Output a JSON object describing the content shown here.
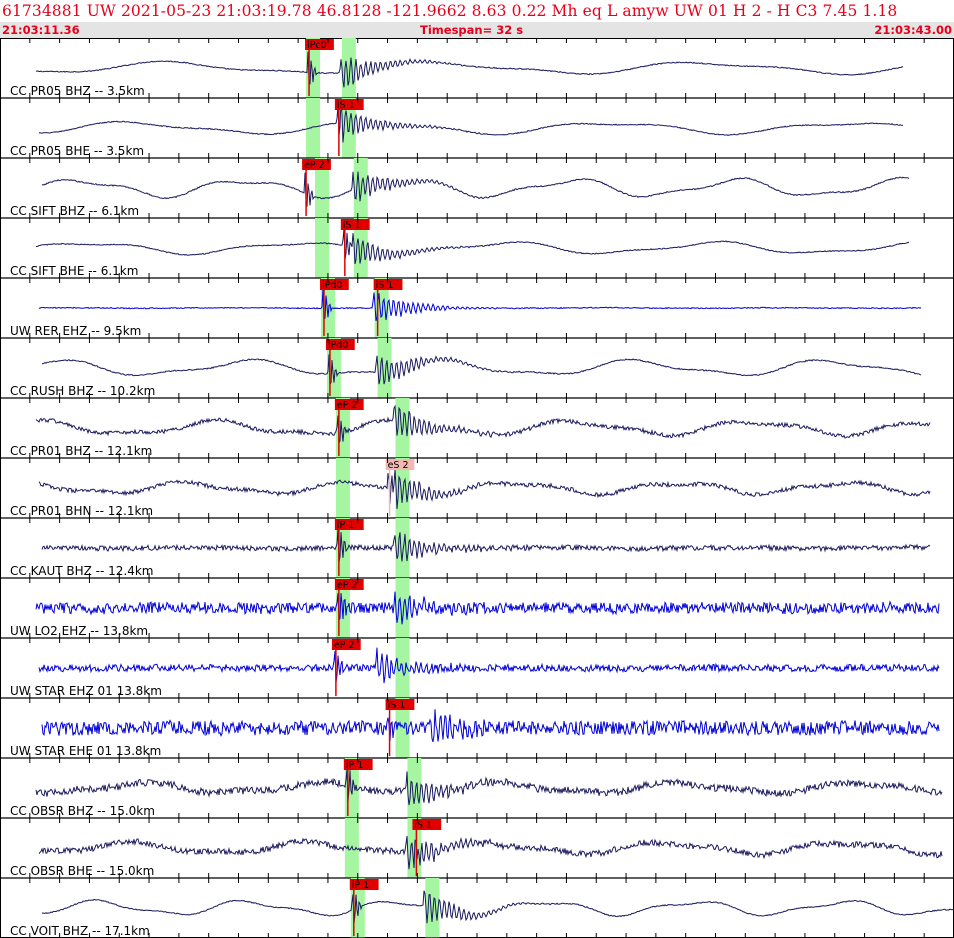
{
  "header": {
    "title": "61734881 UW 2021-05-23 21:03:19.78   46.8128 -121.9662   8.63  0.22 Mh  eq  L amyw     UW 01  H   2  -  H C3    7.45  1.18",
    "start_time": "21:03:11.36",
    "timespan": "Timespan=  32 s",
    "end_time": "21:03:43.00"
  },
  "colors": {
    "title_red": "#e8001a",
    "trace_navy": "#1a1a5e",
    "trace_blue": "#0000d8",
    "window_green": "#a6f5a0",
    "pick_red": "#e00000",
    "pick_selected": "#f4b8b4",
    "time_bar_bg": "#e4e4e4"
  },
  "chart_data": {
    "type": "seismogram",
    "x_range_s": [
      0,
      32
    ],
    "tick_interval_s": 1,
    "traces": [
      {
        "label": "CC PR05 BHZ -- 3.5km",
        "color": "navy",
        "amp": 0.17,
        "noise": 0.05,
        "low_amp": 0.5,
        "low_period": 9,
        "end_s": 30.3,
        "picks": [
          {
            "text": "iPc0",
            "t": 10.3,
            "selected": false
          }
        ],
        "windows": [
          {
            "t": 10.3
          },
          {
            "t": 11.5
          }
        ]
      },
      {
        "label": "CC PR05 BHE -- 3.5km",
        "color": "navy",
        "amp": 0.17,
        "noise": 0.05,
        "low_amp": 0.5,
        "low_period": 8,
        "end_s": 30.3,
        "picks": [
          {
            "text": "iS 1",
            "t": 11.3,
            "selected": false
          }
        ],
        "windows": [
          {
            "t": 10.3
          },
          {
            "t": 11.5
          }
        ]
      },
      {
        "label": "CC SIFT BHZ -- 6.1km",
        "color": "navy",
        "amp": 0.17,
        "noise": 0.06,
        "low_amp": 0.75,
        "low_period": 5.5,
        "end_s": 30.5,
        "picks": [
          {
            "text": "eP 2",
            "t": 10.2,
            "selected": false
          }
        ],
        "windows": [
          {
            "t": 10.6
          },
          {
            "t": 11.9
          }
        ]
      },
      {
        "label": "CC SIFT BHE -- 6.1km",
        "color": "navy",
        "amp": 0.17,
        "noise": 0.05,
        "low_amp": 0.5,
        "low_period": 7,
        "end_s": 30.5,
        "picks": [
          {
            "text": "iS 1",
            "t": 11.5,
            "selected": false
          }
        ],
        "windows": [
          {
            "t": 10.6
          },
          {
            "t": 11.9
          }
        ]
      },
      {
        "label": "UW RER EHZ -- 9.5km",
        "color": "blue",
        "amp": 0.17,
        "noise": 0.05,
        "low_amp": 0.02,
        "low_period": 6,
        "end_s": 30.9,
        "picks": [
          {
            "text": "iPd0",
            "t": 10.8,
            "selected": false
          },
          {
            "text": "iS 1",
            "t": 12.6,
            "selected": false
          }
        ],
        "windows": [
          {
            "t": 10.8
          },
          {
            "t": 12.6
          }
        ]
      },
      {
        "label": "CC RUSH BHZ -- 10.2km",
        "color": "navy",
        "amp": 0.17,
        "noise": 0.06,
        "low_amp": 0.65,
        "low_period": 6.5,
        "end_s": 30.9,
        "picks": [
          {
            "text": "iPd0",
            "t": 11.0,
            "selected": false
          }
        ],
        "windows": [
          {
            "t": 11.0
          },
          {
            "t": 12.7
          }
        ]
      },
      {
        "label": "CC PR01 BHZ -- 12.1km",
        "color": "navy",
        "amp": 0.17,
        "noise": 0.2,
        "low_amp": 0.6,
        "low_period": 6,
        "end_s": 31.2,
        "picks": [
          {
            "text": "eP 2",
            "t": 11.3,
            "selected": false
          }
        ],
        "windows": [
          {
            "t": 11.3
          },
          {
            "t": 13.3
          }
        ]
      },
      {
        "label": "CC PR01 BHN -- 12.1km",
        "color": "navy",
        "amp": 0.17,
        "noise": 0.2,
        "low_amp": 0.5,
        "low_period": 5.5,
        "end_s": 31.2,
        "picks": [
          {
            "text": "eS 2",
            "t": 13.0,
            "selected": true
          }
        ],
        "windows": [
          {
            "t": 11.3
          },
          {
            "t": 13.3
          }
        ]
      },
      {
        "label": "CC KAUT BHZ -- 12.4km",
        "color": "navy",
        "amp": 0.17,
        "noise": 0.25,
        "low_amp": 0.05,
        "low_period": 6,
        "end_s": 31.2,
        "picks": [
          {
            "text": "iP 1",
            "t": 11.3,
            "selected": false
          }
        ],
        "windows": [
          {
            "t": 11.3
          },
          {
            "t": 13.3
          }
        ]
      },
      {
        "label": "UW LO2 EHZ -- 13.8km",
        "color": "blue",
        "amp": 0.17,
        "noise": 0.55,
        "low_amp": 0.05,
        "low_period": 6,
        "end_s": 31.5,
        "picks": [
          {
            "text": "eP 2",
            "t": 11.3,
            "selected": false
          }
        ],
        "windows": [
          {
            "t": 11.3
          },
          {
            "t": 13.3
          }
        ]
      },
      {
        "label": "UW STAR EHZ 01 13.8km",
        "color": "blue",
        "amp": 0.17,
        "noise": 0.35,
        "low_amp": 0.02,
        "low_period": 6,
        "end_s": 31.5,
        "picks": [
          {
            "text": "eP 2",
            "t": 11.2,
            "selected": false
          }
        ],
        "windows": [
          {
            "t": 13.3
          }
        ]
      },
      {
        "label": "UW STAR EHE 01 13.8km",
        "color": "blue",
        "amp": 0.17,
        "noise": 0.7,
        "low_amp": 0.05,
        "low_period": 6,
        "end_s": 31.5,
        "picks": [
          {
            "text": "iS 1",
            "t": 13.0,
            "selected": false
          }
        ],
        "windows": [
          {
            "t": 13.3
          }
        ]
      },
      {
        "label": "CC OBSR BHZ -- 15.0km",
        "color": "navy",
        "amp": 0.17,
        "noise": 0.35,
        "low_amp": 0.45,
        "low_period": 6,
        "end_s": 31.6,
        "picks": [
          {
            "text": "iP 1",
            "t": 11.6,
            "selected": false
          }
        ],
        "windows": [
          {
            "t": 11.6
          },
          {
            "t": 13.7
          }
        ]
      },
      {
        "label": "CC OBSR BHE -- 15.0km",
        "color": "navy",
        "amp": 0.17,
        "noise": 0.3,
        "low_amp": 0.5,
        "low_period": 6,
        "end_s": 31.6,
        "picks": [
          {
            "text": "iS 1",
            "t": 13.9,
            "selected": false
          }
        ],
        "windows": [
          {
            "t": 11.6
          },
          {
            "t": 13.7
          }
        ]
      },
      {
        "label": "CC VOIT BHZ -- 17.1km",
        "color": "navy",
        "amp": 0.17,
        "noise": 0.05,
        "low_amp": 0.6,
        "low_period": 5,
        "end_s": 32,
        "picks": [
          {
            "text": "iP 1",
            "t": 11.8,
            "selected": false
          }
        ],
        "windows": [
          {
            "t": 11.8
          },
          {
            "t": 14.3
          }
        ]
      }
    ]
  }
}
